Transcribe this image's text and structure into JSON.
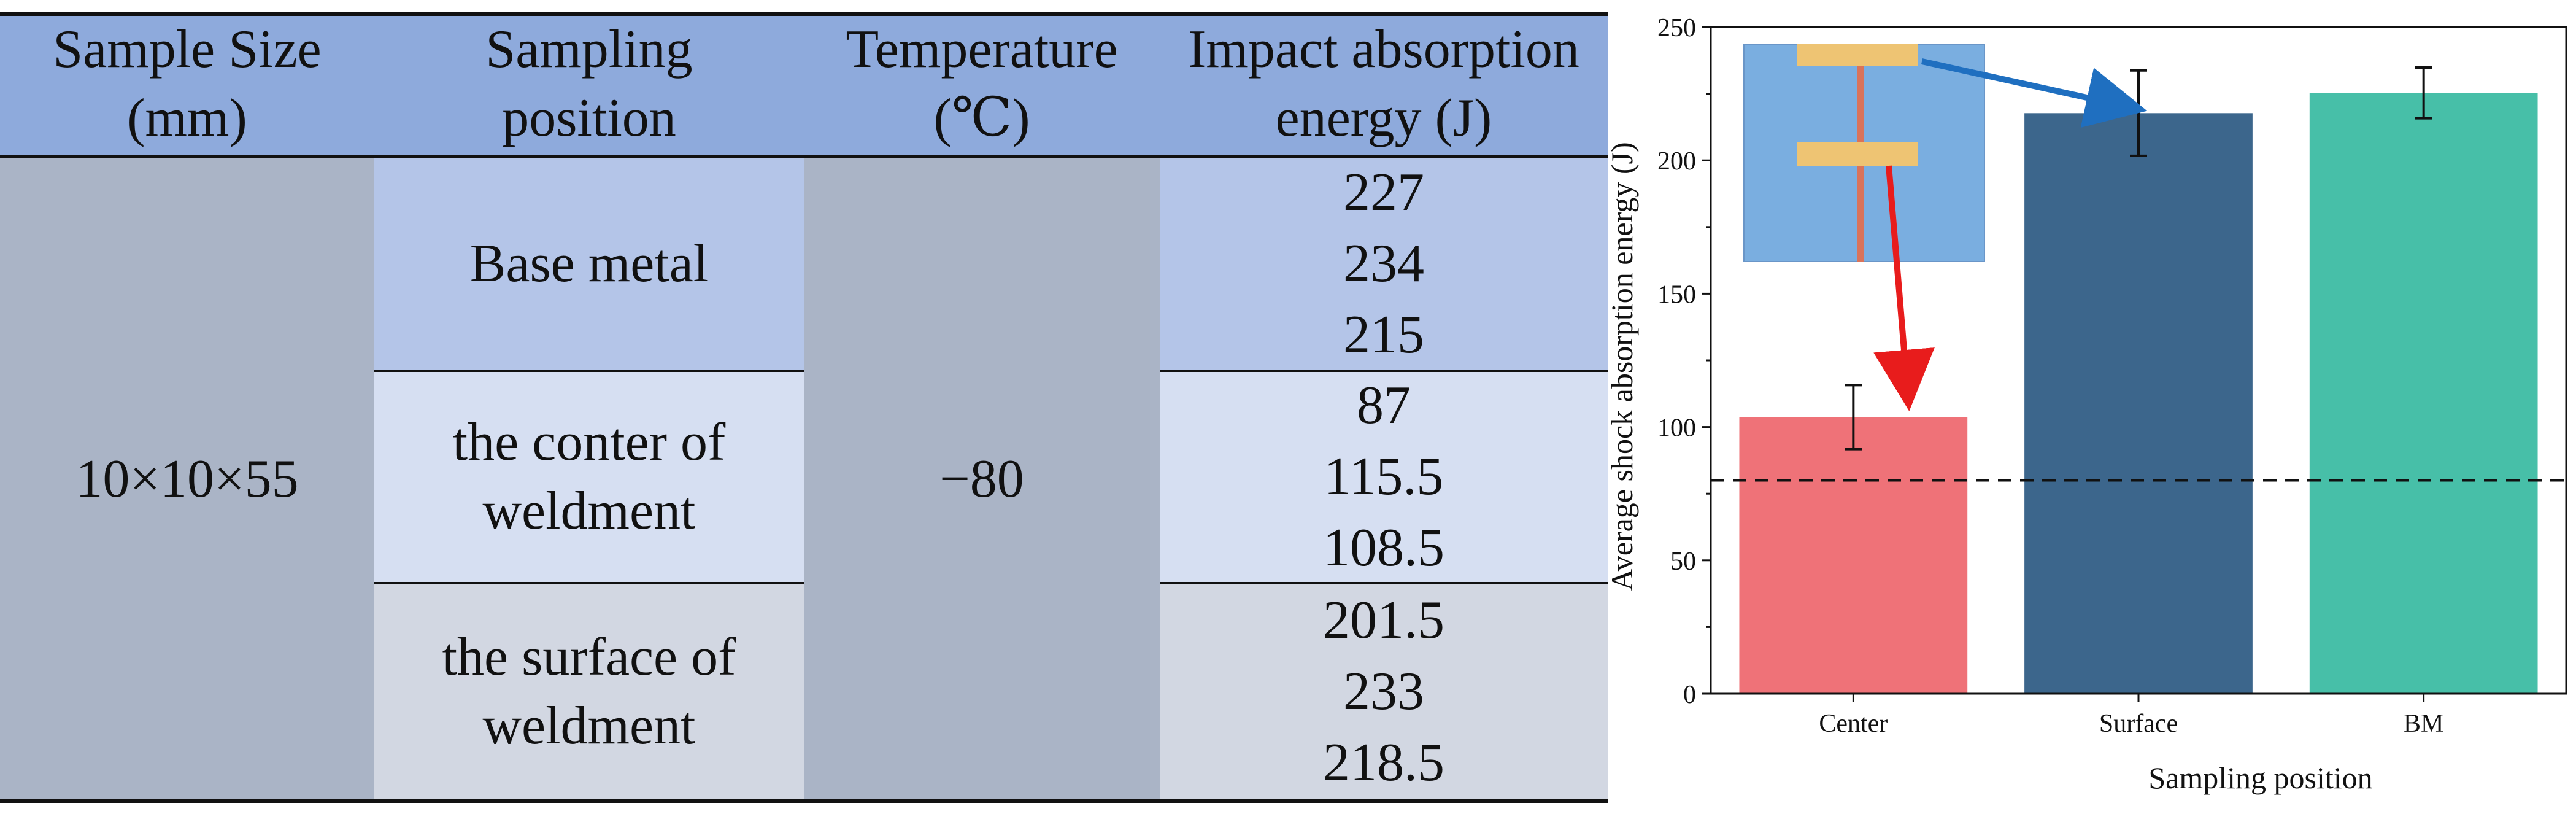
{
  "table": {
    "headers": [
      [
        "Sample Size",
        "(mm)"
      ],
      [
        "Sampling",
        "position"
      ],
      [
        "Temperature",
        "(℃)"
      ],
      [
        "Impact absorption",
        "energy (J)"
      ]
    ],
    "sample_size": "10×10×55",
    "temperature": "−80",
    "rows": [
      {
        "position": [
          "Base metal"
        ],
        "values": [
          "227",
          "234",
          "215"
        ]
      },
      {
        "position": [
          "the conter of",
          "weldment"
        ],
        "values": [
          "87",
          "115.5",
          "108.5"
        ]
      },
      {
        "position": [
          "the surface of",
          "weldment"
        ],
        "values": [
          "201.5",
          "233",
          "218.5"
        ]
      }
    ]
  },
  "chart_data": {
    "type": "bar",
    "categories": [
      "Center",
      "Surface",
      "BM"
    ],
    "values": [
      103.7,
      217.7,
      225.3
    ],
    "errors": [
      12,
      16,
      9.5
    ],
    "colors": [
      "#ef7278",
      "#3c668c",
      "#47bfa8"
    ],
    "xlabel": "Sampling position",
    "ylabel": "Average shock absorption energy (J)",
    "ylim": [
      0,
      250
    ],
    "yticks": [
      0,
      50,
      100,
      150,
      200,
      250
    ],
    "reference_line": 80,
    "grid": false
  }
}
